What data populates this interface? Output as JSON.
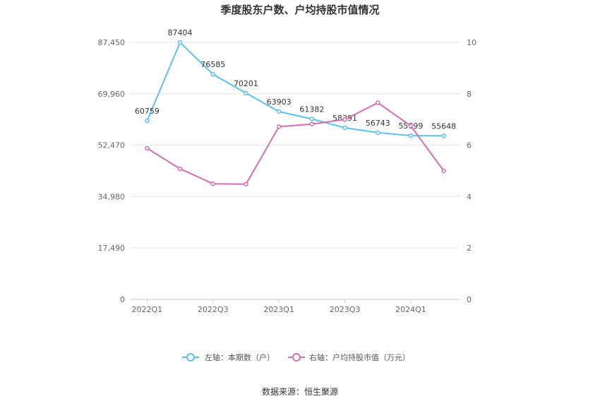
{
  "chart_data": {
    "type": "line",
    "title": "季度股东户数、户均持股市值情况",
    "categories": [
      "2022Q1",
      "2022Q2",
      "2022Q3",
      "2022Q4",
      "2023Q1",
      "2023Q2",
      "2023Q3",
      "2023Q4",
      "2024Q1",
      "2024Q2"
    ],
    "x_tick_labels": [
      "2022Q1",
      "2022Q3",
      "2023Q1",
      "2023Q3",
      "2024Q1"
    ],
    "left_axis": {
      "ticks": [
        "0",
        "17,490",
        "34,980",
        "52,470",
        "69,960",
        "87,450"
      ],
      "ylim": [
        0,
        87450
      ]
    },
    "right_axis": {
      "ticks": [
        "0",
        "2",
        "4",
        "6",
        "8",
        "10"
      ],
      "ylim": [
        0,
        10
      ]
    },
    "series": [
      {
        "name": "左轴：本期数（户）",
        "axis": "left",
        "color": "#5bc0eb",
        "values": [
          60759,
          87404,
          76585,
          70201,
          63903,
          61382,
          58391,
          56743,
          55699,
          55648
        ],
        "labels": [
          "60759",
          "87404",
          "76585",
          "70201",
          "63903",
          "61382",
          "58391",
          "56743",
          "55699",
          "55648"
        ]
      },
      {
        "name": "右轴：户均持股市值（万元）",
        "axis": "right",
        "color": "#d36fb0",
        "values": [
          5.88,
          5.08,
          4.5,
          4.48,
          6.72,
          6.82,
          7.0,
          7.65,
          6.75,
          5.0
        ]
      }
    ],
    "grid": true,
    "legend": "bottom-center",
    "source": "数据来源：恒生聚源"
  }
}
